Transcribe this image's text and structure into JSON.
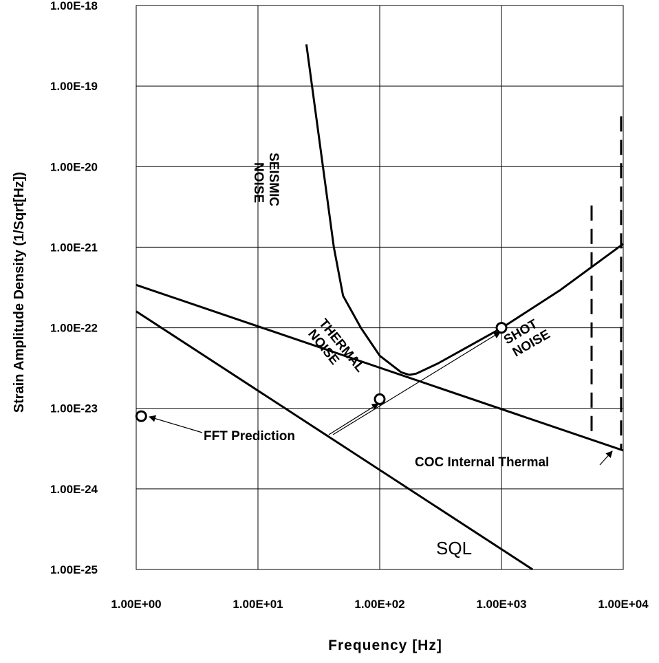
{
  "chart_data": {
    "type": "line",
    "xlabel": "Frequency  [Hz]",
    "ylabel": "Strain Amplitude Density (1/Sqrt[Hz])",
    "x_scale": "log",
    "y_scale": "log",
    "xlim": [
      1,
      10000
    ],
    "ylim": [
      1e-25,
      1e-18
    ],
    "grid": true,
    "x_ticks": [
      {
        "value": 1,
        "label": "1.00E+00"
      },
      {
        "value": 10,
        "label": "1.00E+01"
      },
      {
        "value": 100,
        "label": "1.00E+02"
      },
      {
        "value": 1000,
        "label": "1.00E+03"
      },
      {
        "value": 10000,
        "label": "1.00E+04"
      }
    ],
    "y_ticks": [
      {
        "value": 1e-18,
        "label": "1.00E-18"
      },
      {
        "value": 1e-19,
        "label": "1.00E-19"
      },
      {
        "value": 1e-20,
        "label": "1.00E-20"
      },
      {
        "value": 1e-21,
        "label": "1.00E-21"
      },
      {
        "value": 1e-22,
        "label": "1.00E-22"
      },
      {
        "value": 1e-23,
        "label": "1.00E-23"
      },
      {
        "value": 1e-24,
        "label": "1.00E-24"
      },
      {
        "value": 1e-25,
        "label": "1.00E-25"
      }
    ],
    "series": [
      {
        "name": "SEISMIC NOISE",
        "dashed": false,
        "x": [
          25,
          42,
          50,
          70,
          100,
          150,
          175
        ],
        "y": [
          3.3e-19,
          1e-21,
          2.5e-22,
          1e-22,
          4.5e-23,
          2.8e-23,
          2.6e-23
        ]
      },
      {
        "name": "SHOT NOISE",
        "dashed": false,
        "x": [
          175,
          200,
          300,
          1000,
          3000,
          10000
        ],
        "y": [
          2.6e-23,
          2.7e-23,
          3.6e-23,
          9.9e-23,
          2.9e-22,
          1.1e-21
        ]
      },
      {
        "name": "THERMAL NOISE",
        "dashed": false,
        "x": [
          1,
          10000
        ],
        "y": [
          3.4e-22,
          3e-24
        ]
      },
      {
        "name": "SQL",
        "dashed": false,
        "x": [
          1,
          1800
        ],
        "y": [
          1.6e-22,
          1e-25
        ]
      },
      {
        "name": "",
        "dashed": true,
        "x": [
          5500,
          5500
        ],
        "y": [
          3.3e-21,
          4e-24
        ]
      },
      {
        "name": "",
        "dashed": true,
        "x": [
          9600,
          9600
        ],
        "y": [
          4.2e-20,
          3e-24
        ]
      }
    ],
    "points": [
      {
        "x": 1.1,
        "y": 8e-24
      },
      {
        "x": 100,
        "y": 1.3e-23
      },
      {
        "x": 1000,
        "y": 1e-22
      }
    ],
    "annotations": {
      "seismic": [
        "SEISMIC",
        "NOISE"
      ],
      "thermal": [
        "THERMAL",
        "NOISE"
      ],
      "shot": [
        "SHOT",
        "NOISE"
      ],
      "fft": "FFT Prediction",
      "coc": "COC Internal Thermal",
      "sql": "SQL"
    }
  }
}
